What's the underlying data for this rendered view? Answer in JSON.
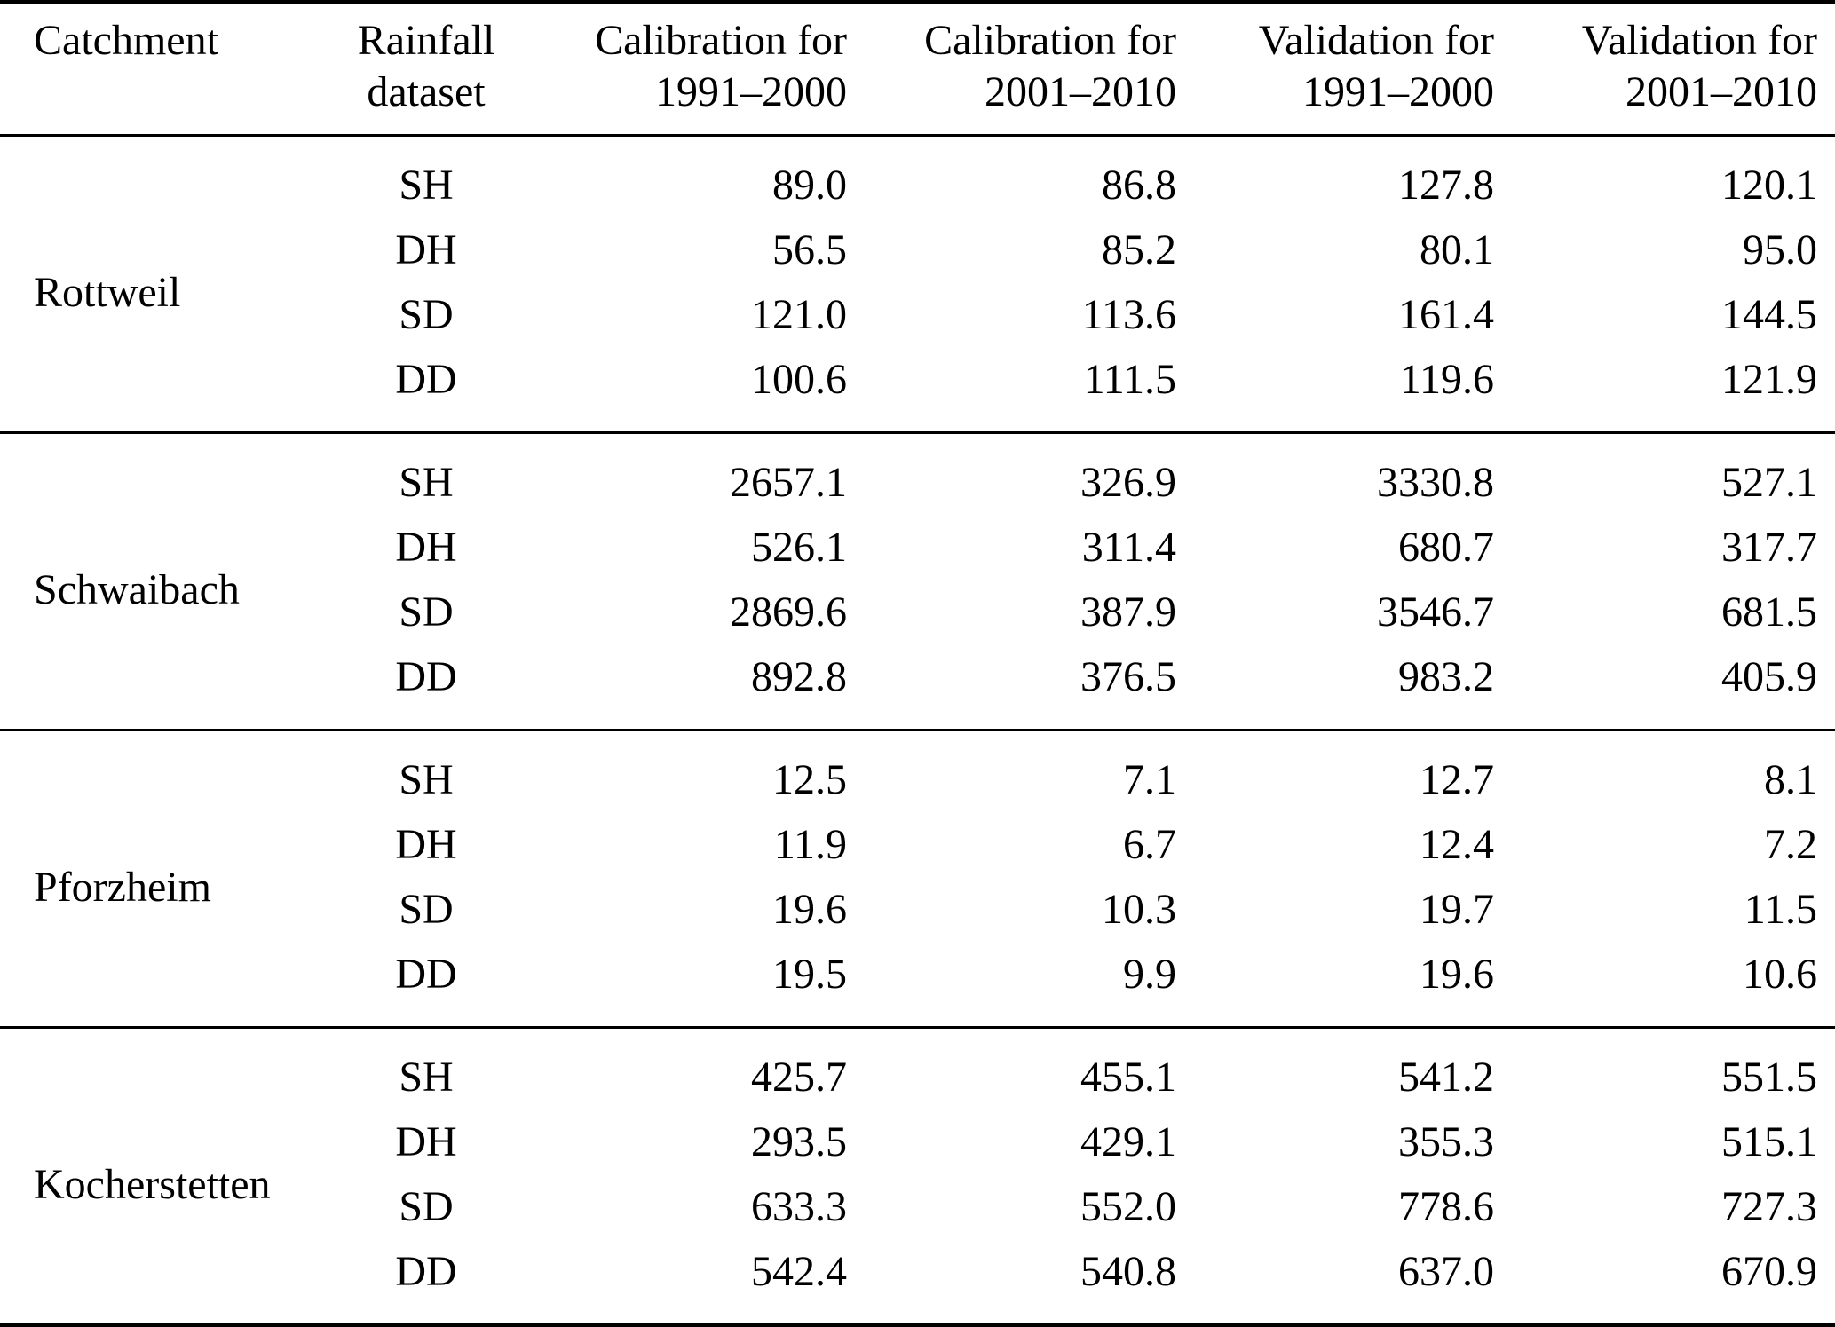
{
  "table": {
    "headers": {
      "catchment": "Catchment",
      "dataset": {
        "line1": "Rainfall",
        "line2": "dataset"
      },
      "cols": [
        {
          "line1": "Calibration for",
          "line2": "1991–2000"
        },
        {
          "line1": "Calibration for",
          "line2": "2001–2010"
        },
        {
          "line1": "Validation for",
          "line2": "1991–2000"
        },
        {
          "line1": "Validation for",
          "line2": "2001–2010"
        }
      ]
    },
    "groups": [
      {
        "catchment": "Rottweil",
        "rows": [
          {
            "dataset": "SH",
            "values": [
              "89.0",
              "86.8",
              "127.8",
              "120.1"
            ]
          },
          {
            "dataset": "DH",
            "values": [
              "56.5",
              "85.2",
              "80.1",
              "95.0"
            ]
          },
          {
            "dataset": "SD",
            "values": [
              "121.0",
              "113.6",
              "161.4",
              "144.5"
            ]
          },
          {
            "dataset": "DD",
            "values": [
              "100.6",
              "111.5",
              "119.6",
              "121.9"
            ]
          }
        ]
      },
      {
        "catchment": "Schwaibach",
        "rows": [
          {
            "dataset": "SH",
            "values": [
              "2657.1",
              "326.9",
              "3330.8",
              "527.1"
            ]
          },
          {
            "dataset": "DH",
            "values": [
              "526.1",
              "311.4",
              "680.7",
              "317.7"
            ]
          },
          {
            "dataset": "SD",
            "values": [
              "2869.6",
              "387.9",
              "3546.7",
              "681.5"
            ]
          },
          {
            "dataset": "DD",
            "values": [
              "892.8",
              "376.5",
              "983.2",
              "405.9"
            ]
          }
        ]
      },
      {
        "catchment": "Pforzheim",
        "rows": [
          {
            "dataset": "SH",
            "values": [
              "12.5",
              "7.1",
              "12.7",
              "8.1"
            ]
          },
          {
            "dataset": "DH",
            "values": [
              "11.9",
              "6.7",
              "12.4",
              "7.2"
            ]
          },
          {
            "dataset": "SD",
            "values": [
              "19.6",
              "10.3",
              "19.7",
              "11.5"
            ]
          },
          {
            "dataset": "DD",
            "values": [
              "19.5",
              "9.9",
              "19.6",
              "10.6"
            ]
          }
        ]
      },
      {
        "catchment": "Kocherstetten",
        "rows": [
          {
            "dataset": "SH",
            "values": [
              "425.7",
              "455.1",
              "541.2",
              "551.5"
            ]
          },
          {
            "dataset": "DH",
            "values": [
              "293.5",
              "429.1",
              "355.3",
              "515.1"
            ]
          },
          {
            "dataset": "SD",
            "values": [
              "633.3",
              "552.0",
              "778.6",
              "727.3"
            ]
          },
          {
            "dataset": "DD",
            "values": [
              "542.4",
              "540.8",
              "637.0",
              "670.9"
            ]
          }
        ]
      }
    ]
  }
}
